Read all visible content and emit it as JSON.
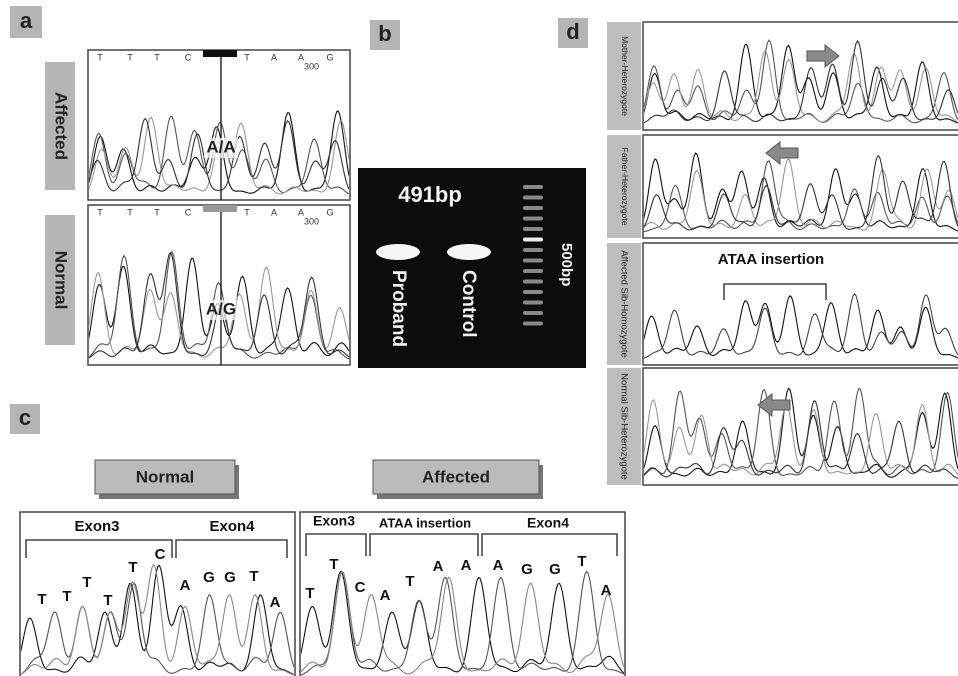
{
  "panel_a": {
    "label": "a",
    "affected": {
      "label": "Affected",
      "call": "A/A",
      "bases": [
        "T",
        "T",
        "T",
        "C",
        "T",
        "A",
        "A",
        "G"
      ],
      "position": "300"
    },
    "normal": {
      "label": "Normal",
      "call": "A/G",
      "bases": [
        "T",
        "T",
        "T",
        "C",
        "T",
        "A",
        "A",
        "G"
      ],
      "position": "300"
    }
  },
  "panel_b": {
    "label": "b",
    "size": "491bp",
    "lanes": [
      "Proband",
      "Control"
    ],
    "marker": "500bp"
  },
  "panel_c": {
    "label": "c",
    "normal": {
      "title": "Normal",
      "regions": [
        "Exon3",
        "Exon4"
      ],
      "bases": [
        "T",
        "T",
        "T",
        "T",
        "T",
        "C",
        "A",
        "G",
        "G",
        "T",
        "A"
      ]
    },
    "affected": {
      "title": "Affected",
      "regions": [
        "Exon3",
        "ATAA insertion",
        "Exon4"
      ],
      "bases": [
        "T",
        "T",
        "C",
        "A",
        "T",
        "A",
        "A",
        "A",
        "G",
        "G",
        "T",
        "A"
      ]
    }
  },
  "panel_d": {
    "label": "d",
    "rows": [
      "Mother-Heterozygote",
      "Father-Heterozygote",
      "Affected Sib-Homozygote",
      "Normal Sib-Heterozygote"
    ],
    "annotation": "ATAA insertion"
  }
}
